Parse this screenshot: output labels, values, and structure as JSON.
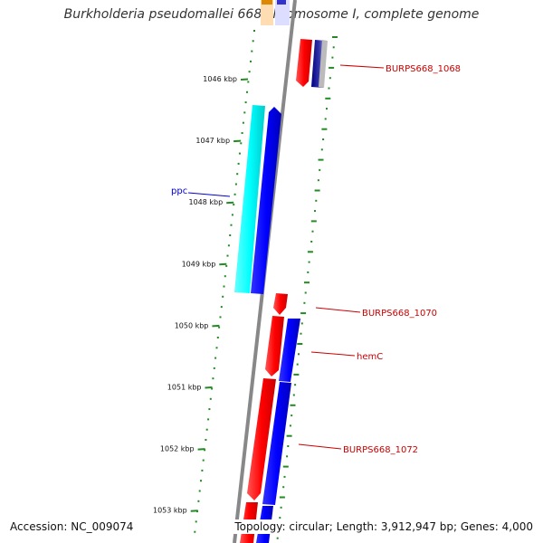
{
  "title": "Burkholderia pseudomallei 668 chromosome I, complete genome",
  "footer": {
    "accession": "Accession: NC_009074",
    "topology": "Topology: circular; Length: 3,912,947 bp; Genes: 4,000"
  },
  "ticks": [
    "1046 kbp",
    "1047 kbp",
    "1048 kbp",
    "1049 kbp",
    "1050 kbp",
    "1051 kbp",
    "1052 kbp",
    "1053 kbp"
  ],
  "gene_labels": [
    {
      "text": "BURPS668_1068",
      "color": "#cc0000"
    },
    {
      "text": "ppc",
      "color": "#0000cc"
    },
    {
      "text": "BURPS668_1070",
      "color": "#cc0000"
    },
    {
      "text": "hemC",
      "color": "#cc0000"
    },
    {
      "text": "BURPS668_1072",
      "color": "#cc0000"
    }
  ],
  "colors": {
    "forward": "#ff0000",
    "reverse": "#0000ff",
    "other": "#00ffff",
    "gc_skew": "#228B22",
    "backbone": "#888888"
  }
}
